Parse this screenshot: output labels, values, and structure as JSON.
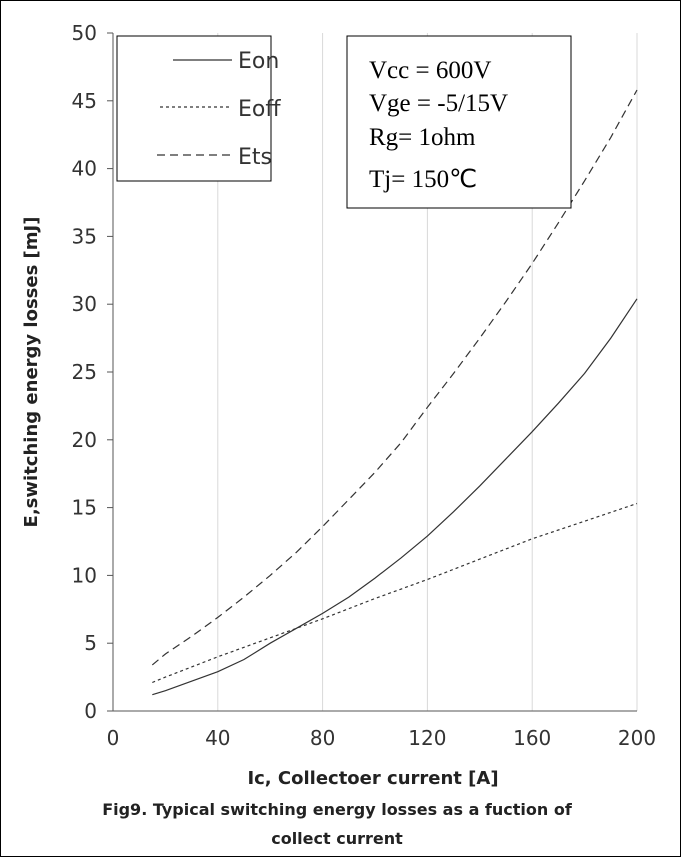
{
  "chart_data": {
    "type": "line",
    "xlabel": "Ic, Collectoer current [A]",
    "ylabel": "E,switching energy losses [mJ]",
    "caption": [
      "Fig9. Typical switching energy losses as a fuction of",
      "collect current"
    ],
    "xlim": [
      0,
      200
    ],
    "ylim": [
      0,
      50
    ],
    "xticks": [
      0,
      40,
      80,
      120,
      160,
      200
    ],
    "yticks": [
      0,
      5,
      10,
      15,
      20,
      25,
      30,
      35,
      40,
      45,
      50
    ],
    "grid": "vertical",
    "legend_position": "top-left",
    "conditions": [
      "Vcc = 600V",
      "Vge = -5/15V",
      "Rg= 1ohm",
      "Tj= 150℃"
    ],
    "series": [
      {
        "name": "Eon",
        "style": "solid",
        "x": [
          15,
          20,
          30,
          40,
          50,
          60,
          70,
          80,
          90,
          100,
          110,
          120,
          130,
          140,
          150,
          160,
          170,
          180,
          190,
          200
        ],
        "y": [
          1.2,
          1.5,
          2.2,
          2.9,
          3.8,
          5.0,
          6.1,
          7.2,
          8.4,
          9.8,
          11.3,
          12.9,
          14.7,
          16.6,
          18.6,
          20.6,
          22.7,
          24.9,
          27.5,
          30.4
        ]
      },
      {
        "name": "Eoff",
        "style": "dotted",
        "x": [
          15,
          20,
          40,
          60,
          80,
          100,
          120,
          140,
          160,
          180,
          200
        ],
        "y": [
          2.1,
          2.5,
          4.0,
          5.4,
          6.8,
          8.3,
          9.7,
          11.2,
          12.7,
          14.0,
          15.3
        ]
      },
      {
        "name": "Ets",
        "style": "dashed",
        "x": [
          15,
          20,
          30,
          40,
          50,
          60,
          70,
          80,
          90,
          100,
          110,
          120,
          130,
          140,
          150,
          160,
          170,
          180,
          190,
          200
        ],
        "y": [
          3.4,
          4.2,
          5.5,
          6.9,
          8.4,
          10.0,
          11.7,
          13.6,
          15.6,
          17.6,
          19.8,
          22.4,
          24.9,
          27.5,
          30.2,
          33.0,
          36.0,
          39.1,
          42.3,
          45.8
        ]
      }
    ]
  }
}
